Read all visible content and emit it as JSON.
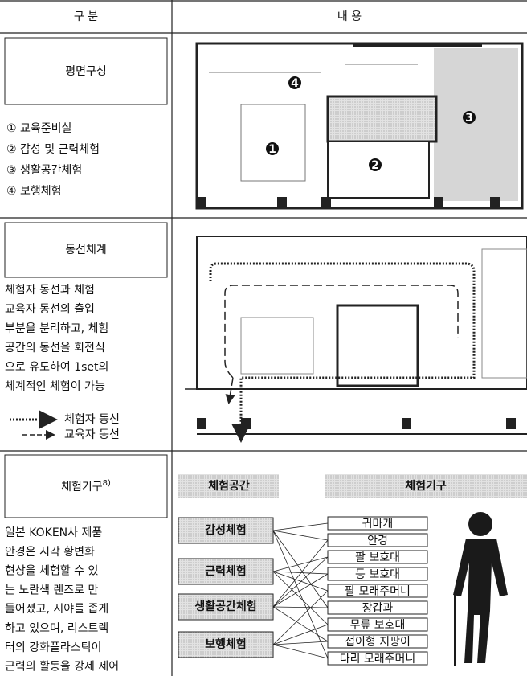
{
  "header": {
    "col1": "구 분",
    "col2": "내 용"
  },
  "sections": [
    {
      "label": "평면구성",
      "items": [
        "① 교육준비실",
        "② 감성 및 근력체험",
        "③ 생활공간체험",
        "④ 보행체험"
      ],
      "plan_markers": [
        "4",
        "1",
        "2",
        "3"
      ]
    },
    {
      "label": "동선체계",
      "text_lines": [
        "체험자 동선과 체험",
        "교육자 동선의 출입",
        "부분을 분리하고, 체험",
        "공간의 동선을 회전식",
        "으로 유도하여 1set의",
        "체계적인 체험이 가능"
      ],
      "legend": [
        "체험자 동선",
        "교육자 동선"
      ]
    },
    {
      "label": "체험기구",
      "footnote": "8)",
      "text_lines": [
        "일본 KOKEN사 제품",
        "안경은 시각 황변화",
        "현상을 체험할 수 있",
        "는 노란색 렌즈로 만",
        "들어졌고, 시야를 좁게",
        "하고 있으며, 리스트렉",
        "터의 강화플라스틱이",
        "근력의 활동을 강제 제어"
      ],
      "diagram": {
        "left_header": "체험공간",
        "right_header": "체험기구",
        "spaces": [
          "감성체험",
          "근력체험",
          "생활공간체험",
          "보행체험"
        ],
        "equipment": [
          "귀마개",
          "안경",
          "팔 보호대",
          "등 보호대",
          "팔 모래주머니",
          "장갑과",
          "무릎 보호대",
          "접이형 지팡이",
          "다리 모래주머니"
        ]
      }
    }
  ]
}
